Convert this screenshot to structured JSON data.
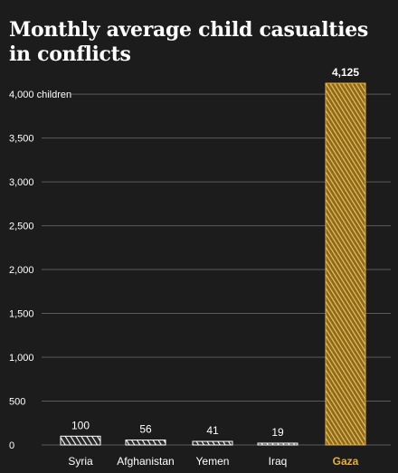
{
  "title": "Monthly average child casualties in conflicts",
  "colors": {
    "background": "#1c1c1c",
    "highlight": "#e5b13a",
    "default_bar": "#ffffff",
    "grid": "#5a5a5a",
    "text": "#ffffff"
  },
  "chart_data": {
    "type": "bar",
    "title": "Monthly average child casualties in conflicts",
    "categories": [
      "Syria",
      "Afghanistan",
      "Yemen",
      "Iraq",
      "Gaza"
    ],
    "values": [
      100,
      56,
      41,
      19,
      4125
    ],
    "value_labels": [
      "100",
      "56",
      "41",
      "19",
      "4,125"
    ],
    "highlight_category": "Gaza",
    "ylim": [
      0,
      4125
    ],
    "y_ticks": [
      0,
      500,
      1000,
      1500,
      2000,
      2500,
      3000,
      3500,
      4000
    ],
    "y_tick_labels": [
      "0",
      "500",
      "1,000",
      "1,500",
      "2,000",
      "2,500",
      "3,000",
      "3,500",
      "4,000 children"
    ],
    "grid": true,
    "legend": "none",
    "xlabel": "",
    "ylabel": ""
  }
}
